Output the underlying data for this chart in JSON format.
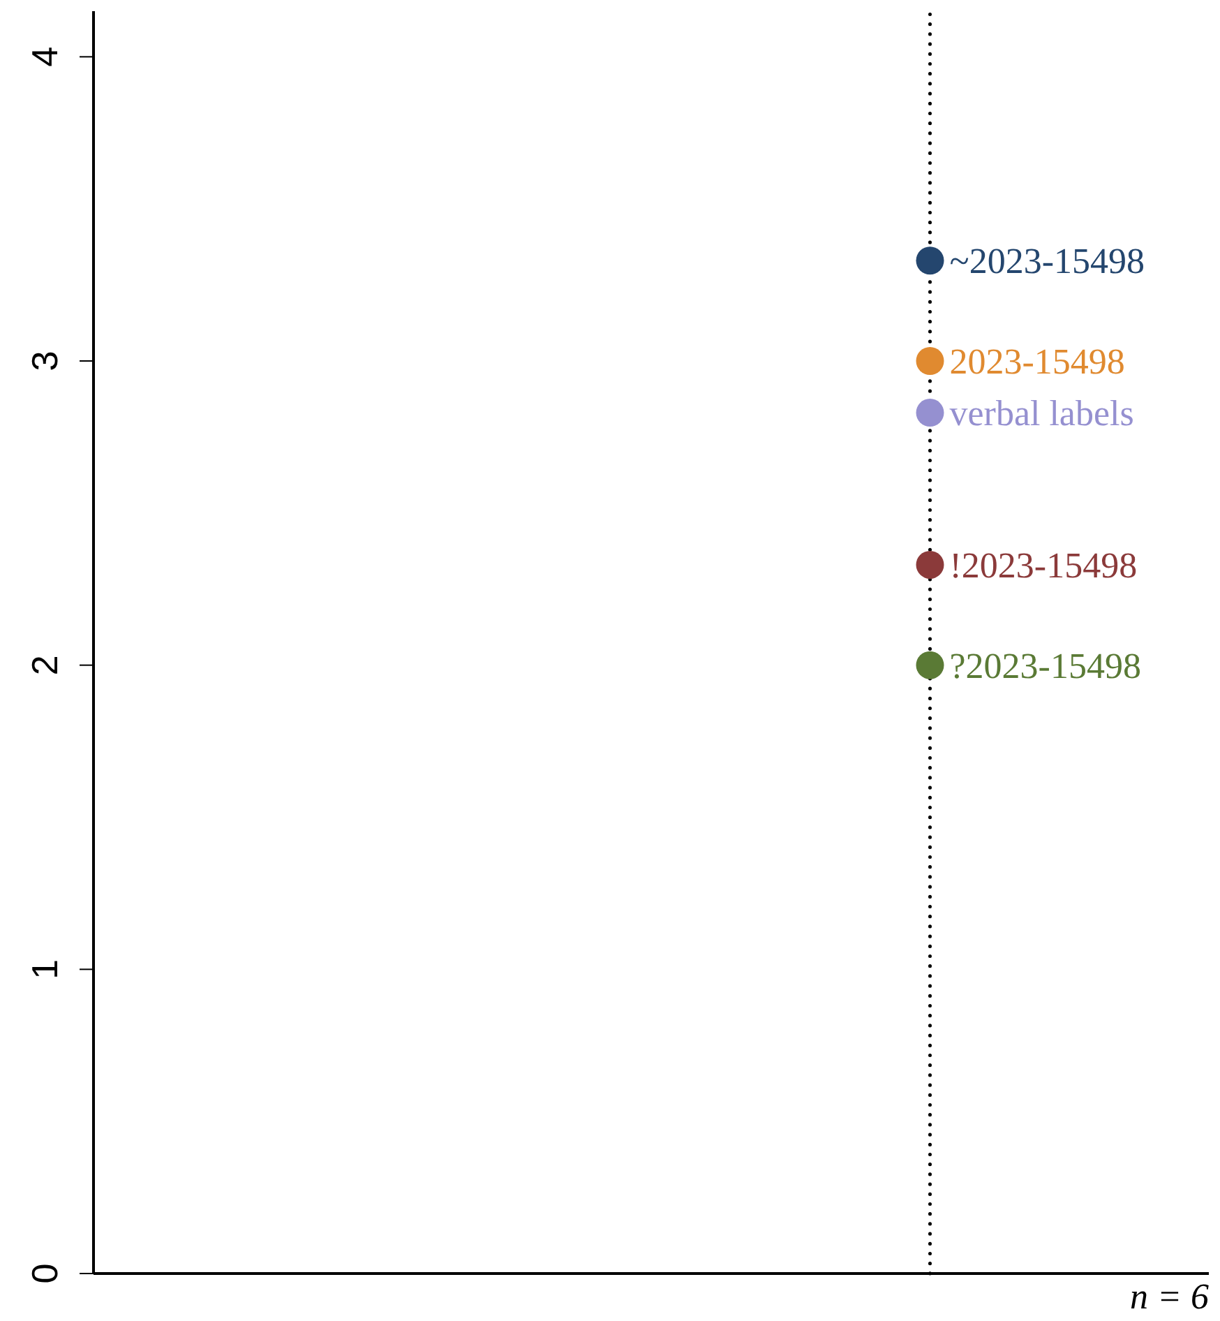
{
  "chart_data": {
    "type": "scatter",
    "categories": [
      null,
      null
    ],
    "ylim": [
      0,
      4.15
    ],
    "yticks": [
      0,
      1,
      2,
      3,
      4
    ],
    "tick_labels": "y",
    "marker": "circle",
    "series": [
      {
        "name": "~2023-15498",
        "color": "#24466e",
        "values": [
          null,
          3.33
        ]
      },
      {
        "name": "2023-15498",
        "color": "#e08a30",
        "values": [
          null,
          3.0
        ]
      },
      {
        "name": "verbal labels",
        "color": "#9590d0",
        "values": [
          null,
          2.83
        ]
      },
      {
        "name": "!2023-15498",
        "color": "#8b3a3a",
        "values": [
          null,
          2.33
        ]
      },
      {
        "name": "?2023-15498",
        "color": "#5a7a35",
        "values": [
          null,
          2.0
        ]
      }
    ],
    "ref_lines": [
      {
        "axis": "x",
        "color": "#000000",
        "line_style": "dotted"
      }
    ],
    "annotations": [
      "n = 6"
    ]
  }
}
